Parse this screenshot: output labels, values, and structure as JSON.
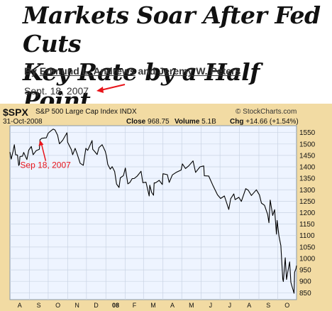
{
  "headline": {
    "line1": "Markets Soar After Fed Cuts",
    "line2": "Key Rate by a Half Point"
  },
  "byline": {
    "prefix": "By",
    "author1": "Edmund L. Andrews",
    "connector": "and",
    "author2": "Jeremy W. Peters"
  },
  "dateline": "Sept. 18, 2007",
  "colors": {
    "chart_frame": "#f2dba3",
    "plot_bg": "#eef4ff",
    "grid": "#c9d3e3",
    "line": "#000000",
    "annotation": "#e8141a"
  },
  "chart_data": {
    "type": "line",
    "header": {
      "symbol": "$SPX",
      "name": "S&P 500 Large Cap Index",
      "exchange": "INDX",
      "date": "31-Oct-2008",
      "close_label": "Close",
      "close_value": "968.75",
      "volume_label": "Volume",
      "volume_value": "5.1B",
      "chg_label": "Chg",
      "chg_value": "+14.66 (+1.54%)",
      "watermark": "© StockCharts.com"
    },
    "ylim": [
      820,
      1580
    ],
    "y_ticks": [
      850,
      900,
      950,
      1000,
      1050,
      1100,
      1150,
      1200,
      1250,
      1300,
      1350,
      1400,
      1450,
      1500,
      1550
    ],
    "x_ticks": [
      "A",
      "S",
      "O",
      "N",
      "D",
      "08",
      "F",
      "M",
      "A",
      "M",
      "J",
      "J",
      "A",
      "S",
      "O"
    ],
    "x_start": "2007-08-01",
    "x_end": "2008-10-31",
    "grid": true,
    "annotation": {
      "label": "Sep 18, 2007",
      "date": "2007-09-18",
      "value": 1519
    },
    "series": [
      {
        "values": [
          [
            "2007-08-01",
            1465
          ],
          [
            "2007-08-03",
            1434
          ],
          [
            "2007-08-06",
            1468
          ],
          [
            "2007-08-08",
            1497
          ],
          [
            "2007-08-10",
            1453
          ],
          [
            "2007-08-13",
            1452
          ],
          [
            "2007-08-15",
            1406
          ],
          [
            "2007-08-16",
            1411
          ],
          [
            "2007-08-17",
            1445
          ],
          [
            "2007-08-21",
            1447
          ],
          [
            "2007-08-23",
            1463
          ],
          [
            "2007-08-28",
            1432
          ],
          [
            "2007-08-31",
            1473
          ],
          [
            "2007-09-04",
            1489
          ],
          [
            "2007-09-07",
            1453
          ],
          [
            "2007-09-12",
            1471
          ],
          [
            "2007-09-17",
            1477
          ],
          [
            "2007-09-18",
            1519
          ],
          [
            "2007-09-21",
            1525
          ],
          [
            "2007-09-28",
            1527
          ],
          [
            "2007-10-01",
            1547
          ],
          [
            "2007-10-05",
            1557
          ],
          [
            "2007-10-09",
            1565
          ],
          [
            "2007-10-12",
            1561
          ],
          [
            "2007-10-16",
            1538
          ],
          [
            "2007-10-19",
            1501
          ],
          [
            "2007-10-24",
            1516
          ],
          [
            "2007-10-31",
            1549
          ],
          [
            "2007-11-01",
            1508
          ],
          [
            "2007-11-07",
            1475
          ],
          [
            "2007-11-09",
            1453
          ],
          [
            "2007-11-13",
            1481
          ],
          [
            "2007-11-16",
            1458
          ],
          [
            "2007-11-21",
            1416
          ],
          [
            "2007-11-26",
            1407
          ],
          [
            "2007-11-30",
            1481
          ],
          [
            "2007-12-03",
            1472
          ],
          [
            "2007-12-10",
            1515
          ],
          [
            "2007-12-11",
            1477
          ],
          [
            "2007-12-14",
            1468
          ],
          [
            "2007-12-18",
            1454
          ],
          [
            "2007-12-21",
            1484
          ],
          [
            "2007-12-26",
            1497
          ],
          [
            "2007-12-31",
            1468
          ],
          [
            "2008-01-02",
            1447
          ],
          [
            "2008-01-04",
            1411
          ],
          [
            "2008-01-08",
            1390
          ],
          [
            "2008-01-11",
            1401
          ],
          [
            "2008-01-15",
            1380
          ],
          [
            "2008-01-18",
            1325
          ],
          [
            "2008-01-22",
            1310
          ],
          [
            "2008-01-24",
            1352
          ],
          [
            "2008-01-29",
            1362
          ],
          [
            "2008-02-01",
            1395
          ],
          [
            "2008-02-05",
            1326
          ],
          [
            "2008-02-08",
            1331
          ],
          [
            "2008-02-12",
            1349
          ],
          [
            "2008-02-15",
            1349
          ],
          [
            "2008-02-20",
            1360
          ],
          [
            "2008-02-26",
            1381
          ],
          [
            "2008-02-29",
            1331
          ],
          [
            "2008-03-05",
            1333
          ],
          [
            "2008-03-10",
            1273
          ],
          [
            "2008-03-11",
            1320
          ],
          [
            "2008-03-14",
            1288
          ],
          [
            "2008-03-17",
            1276
          ],
          [
            "2008-03-18",
            1330
          ],
          [
            "2008-03-20",
            1330
          ],
          [
            "2008-03-26",
            1341
          ],
          [
            "2008-03-31",
            1323
          ],
          [
            "2008-04-01",
            1370
          ],
          [
            "2008-04-08",
            1366
          ],
          [
            "2008-04-11",
            1332
          ],
          [
            "2008-04-16",
            1365
          ],
          [
            "2008-04-22",
            1376
          ],
          [
            "2008-04-30",
            1386
          ],
          [
            "2008-05-02",
            1413
          ],
          [
            "2008-05-07",
            1393
          ],
          [
            "2008-05-12",
            1404
          ],
          [
            "2008-05-19",
            1426
          ],
          [
            "2008-05-23",
            1376
          ],
          [
            "2008-05-30",
            1400
          ],
          [
            "2008-06-05",
            1404
          ],
          [
            "2008-06-06",
            1361
          ],
          [
            "2008-06-13",
            1360
          ],
          [
            "2008-06-20",
            1317
          ],
          [
            "2008-06-27",
            1278
          ],
          [
            "2008-07-02",
            1262
          ],
          [
            "2008-07-08",
            1273
          ],
          [
            "2008-07-15",
            1214
          ],
          [
            "2008-07-18",
            1261
          ],
          [
            "2008-07-23",
            1282
          ],
          [
            "2008-07-25",
            1257
          ],
          [
            "2008-07-31",
            1267
          ],
          [
            "2008-08-04",
            1249
          ],
          [
            "2008-08-11",
            1305
          ],
          [
            "2008-08-15",
            1298
          ],
          [
            "2008-08-20",
            1275
          ],
          [
            "2008-08-28",
            1300
          ],
          [
            "2008-09-02",
            1277
          ],
          [
            "2008-09-05",
            1242
          ],
          [
            "2008-09-10",
            1232
          ],
          [
            "2008-09-15",
            1192
          ],
          [
            "2008-09-17",
            1156
          ],
          [
            "2008-09-19",
            1255
          ],
          [
            "2008-09-23",
            1188
          ],
          [
            "2008-09-26",
            1213
          ],
          [
            "2008-09-29",
            1106
          ],
          [
            "2008-09-30",
            1166
          ],
          [
            "2008-10-03",
            1099
          ],
          [
            "2008-10-06",
            1056
          ],
          [
            "2008-10-09",
            910
          ],
          [
            "2008-10-10",
            899
          ],
          [
            "2008-10-13",
            1003
          ],
          [
            "2008-10-15",
            908
          ],
          [
            "2008-10-17",
            940
          ],
          [
            "2008-10-20",
            985
          ],
          [
            "2008-10-22",
            896
          ],
          [
            "2008-10-24",
            876
          ],
          [
            "2008-10-27",
            848
          ],
          [
            "2008-10-28",
            940
          ],
          [
            "2008-10-30",
            954
          ],
          [
            "2008-10-31",
            969
          ]
        ]
      }
    ]
  }
}
